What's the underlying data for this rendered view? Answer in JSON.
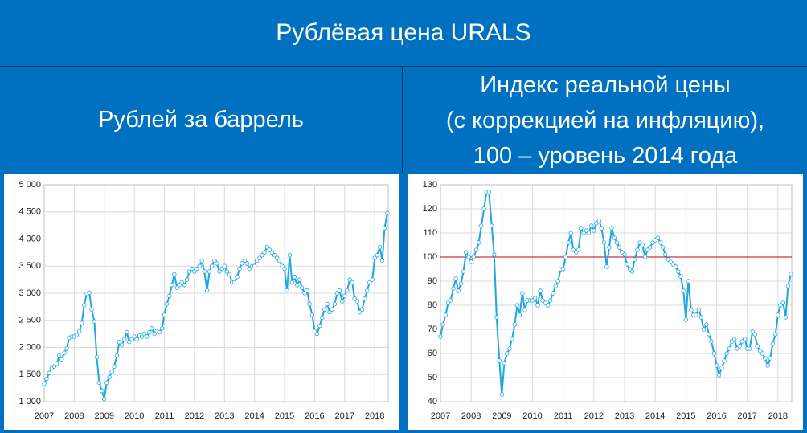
{
  "title": "Рублёвая цена URALS",
  "chart_data": [
    {
      "type": "line",
      "title": "Рублей за баррель",
      "color": "#1ea7e1",
      "grid": true,
      "x": [
        2007,
        2007.08,
        2007.17,
        2007.25,
        2007.33,
        2007.42,
        2007.5,
        2007.58,
        2007.67,
        2007.75,
        2007.83,
        2007.92,
        2008,
        2008.08,
        2008.17,
        2008.25,
        2008.33,
        2008.42,
        2008.5,
        2008.58,
        2008.67,
        2008.75,
        2008.83,
        2008.92,
        2009,
        2009.08,
        2009.17,
        2009.25,
        2009.33,
        2009.42,
        2009.5,
        2009.58,
        2009.67,
        2009.75,
        2009.83,
        2009.92,
        2010,
        2010.08,
        2010.17,
        2010.25,
        2010.33,
        2010.42,
        2010.5,
        2010.58,
        2010.67,
        2010.75,
        2010.83,
        2010.92,
        2011,
        2011.08,
        2011.17,
        2011.25,
        2011.33,
        2011.42,
        2011.5,
        2011.58,
        2011.67,
        2011.75,
        2011.83,
        2011.92,
        2012,
        2012.08,
        2012.17,
        2012.25,
        2012.33,
        2012.42,
        2012.5,
        2012.58,
        2012.67,
        2012.75,
        2012.83,
        2012.92,
        2013,
        2013.08,
        2013.17,
        2013.25,
        2013.33,
        2013.42,
        2013.5,
        2013.58,
        2013.67,
        2013.75,
        2013.83,
        2013.92,
        2014,
        2014.08,
        2014.17,
        2014.25,
        2014.33,
        2014.42,
        2014.5,
        2014.58,
        2014.67,
        2014.75,
        2014.83,
        2014.92,
        2015,
        2015.08,
        2015.17,
        2015.25,
        2015.33,
        2015.42,
        2015.5,
        2015.58,
        2015.67,
        2015.75,
        2015.83,
        2015.92,
        2016,
        2016.08,
        2016.17,
        2016.25,
        2016.33,
        2016.42,
        2016.5,
        2016.58,
        2016.67,
        2016.75,
        2016.83,
        2016.92,
        2017,
        2017.08,
        2017.17,
        2017.25,
        2017.33,
        2017.42,
        2017.5,
        2017.58,
        2017.67,
        2017.75,
        2017.83,
        2017.92,
        2018,
        2018.08,
        2018.17,
        2018.25,
        2018.33,
        2018.42
      ],
      "values": [
        1330,
        1420,
        1530,
        1620,
        1650,
        1700,
        1850,
        1780,
        1900,
        1980,
        2180,
        2200,
        2200,
        2230,
        2300,
        2450,
        2780,
        2990,
        3010,
        2700,
        2480,
        1820,
        1350,
        1200,
        1050,
        1350,
        1450,
        1550,
        1650,
        1850,
        2100,
        2050,
        2150,
        2280,
        2100,
        2150,
        2200,
        2150,
        2220,
        2200,
        2250,
        2200,
        2280,
        2350,
        2250,
        2300,
        2280,
        2350,
        2600,
        2800,
        2950,
        3150,
        3350,
        3100,
        3150,
        3200,
        3150,
        3250,
        3400,
        3450,
        3400,
        3450,
        3500,
        3600,
        3400,
        3050,
        3400,
        3500,
        3600,
        3550,
        3400,
        3450,
        3500,
        3400,
        3350,
        3200,
        3200,
        3300,
        3450,
        3550,
        3600,
        3550,
        3450,
        3500,
        3500,
        3600,
        3650,
        3700,
        3750,
        3850,
        3800,
        3750,
        3700,
        3650,
        3600,
        3500,
        3450,
        3050,
        3700,
        3200,
        3300,
        3150,
        3250,
        3100,
        3000,
        3050,
        2800,
        2600,
        2300,
        2250,
        2400,
        2550,
        2700,
        2800,
        2650,
        2700,
        2800,
        3000,
        3050,
        2850,
        2950,
        3050,
        3250,
        3200,
        2900,
        2850,
        2650,
        2700,
        2900,
        3050,
        3200,
        3250,
        3650,
        3700,
        3850,
        3600,
        4200,
        4480
      ],
      "xlim": [
        2007,
        2018.45
      ],
      "xticks": [
        2007,
        2008,
        2009,
        2010,
        2011,
        2012,
        2013,
        2014,
        2015,
        2016,
        2017,
        2018
      ],
      "ylim": [
        1000,
        5000
      ],
      "yticks": [
        {
          "value": 1000,
          "label": "1 000"
        },
        {
          "value": 1500,
          "label": "1 500"
        },
        {
          "value": 2000,
          "label": "2 000"
        },
        {
          "value": 2500,
          "label": "2 500"
        },
        {
          "value": 3000,
          "label": "3 000"
        },
        {
          "value": 3500,
          "label": "3 500"
        },
        {
          "value": 4000,
          "label": "4 000"
        },
        {
          "value": 4500,
          "label": "4 500"
        },
        {
          "value": 5000,
          "label": "5 000"
        }
      ]
    },
    {
      "type": "line",
      "title": [
        "Индекс реальной цены",
        "(с коррекцией на инфляцию),",
        "100 – уровень 2014 года"
      ],
      "color": "#1ea7e1",
      "grid": true,
      "reference_line": {
        "value": 100,
        "color": "#c00000"
      },
      "x": [
        2007,
        2007.08,
        2007.17,
        2007.25,
        2007.33,
        2007.42,
        2007.5,
        2007.58,
        2007.67,
        2007.75,
        2007.83,
        2007.92,
        2008,
        2008.08,
        2008.17,
        2008.25,
        2008.33,
        2008.42,
        2008.5,
        2008.58,
        2008.67,
        2008.75,
        2008.83,
        2008.92,
        2009,
        2009.08,
        2009.17,
        2009.25,
        2009.33,
        2009.42,
        2009.5,
        2009.58,
        2009.67,
        2009.75,
        2009.83,
        2009.92,
        2010,
        2010.08,
        2010.17,
        2010.25,
        2010.33,
        2010.42,
        2010.5,
        2010.58,
        2010.67,
        2010.75,
        2010.83,
        2010.92,
        2011,
        2011.08,
        2011.17,
        2011.25,
        2011.33,
        2011.42,
        2011.5,
        2011.58,
        2011.67,
        2011.75,
        2011.83,
        2011.92,
        2012,
        2012.08,
        2012.17,
        2012.25,
        2012.33,
        2012.42,
        2012.5,
        2012.58,
        2012.67,
        2012.75,
        2012.83,
        2012.92,
        2013,
        2013.08,
        2013.17,
        2013.25,
        2013.33,
        2013.42,
        2013.5,
        2013.58,
        2013.67,
        2013.75,
        2013.83,
        2013.92,
        2014,
        2014.08,
        2014.17,
        2014.25,
        2014.33,
        2014.42,
        2014.5,
        2014.58,
        2014.67,
        2014.75,
        2014.83,
        2014.92,
        2015,
        2015.08,
        2015.17,
        2015.25,
        2015.33,
        2015.42,
        2015.5,
        2015.58,
        2015.67,
        2015.75,
        2015.83,
        2015.92,
        2016,
        2016.08,
        2016.17,
        2016.25,
        2016.33,
        2016.42,
        2016.5,
        2016.58,
        2016.67,
        2016.75,
        2016.83,
        2016.92,
        2017,
        2017.08,
        2017.17,
        2017.25,
        2017.33,
        2017.42,
        2017.5,
        2017.58,
        2017.67,
        2017.75,
        2017.83,
        2017.92,
        2018,
        2018.08,
        2018.17,
        2018.25,
        2018.33,
        2018.42
      ],
      "values": [
        67,
        72,
        76,
        81,
        82,
        87,
        91,
        86,
        89,
        94,
        102,
        100,
        98,
        100,
        103,
        106,
        113,
        120,
        127,
        127,
        113,
        101,
        75,
        57,
        43,
        56,
        60,
        62,
        66,
        72,
        80,
        76,
        85,
        78,
        82,
        82,
        82,
        83,
        80,
        86,
        82,
        81,
        80,
        82,
        85,
        88,
        90,
        95,
        95,
        100,
        106,
        110,
        103,
        102,
        103,
        112,
        110,
        111,
        110,
        113,
        111,
        114,
        115,
        112,
        106,
        96,
        104,
        112,
        108,
        106,
        104,
        102,
        101,
        97,
        95,
        94,
        99,
        103,
        106,
        105,
        100,
        103,
        104,
        106,
        107,
        108,
        106,
        104,
        101,
        99,
        98,
        97,
        96,
        94,
        92,
        86,
        74,
        90,
        78,
        76,
        76,
        78,
        75,
        70,
        72,
        68,
        65,
        60,
        55,
        51,
        54,
        57,
        60,
        62,
        65,
        66,
        62,
        63,
        65,
        66,
        62,
        62,
        69,
        68,
        63,
        61,
        60,
        58,
        55,
        58,
        64,
        68,
        76,
        80,
        81,
        75,
        88,
        93
      ],
      "xlim": [
        2007,
        2018.45
      ],
      "xticks": [
        2007,
        2008,
        2009,
        2010,
        2011,
        2012,
        2013,
        2014,
        2015,
        2016,
        2017,
        2018
      ],
      "ylim": [
        40,
        130
      ],
      "yticks": [
        40,
        50,
        60,
        70,
        80,
        90,
        100,
        110,
        120,
        130
      ]
    }
  ]
}
